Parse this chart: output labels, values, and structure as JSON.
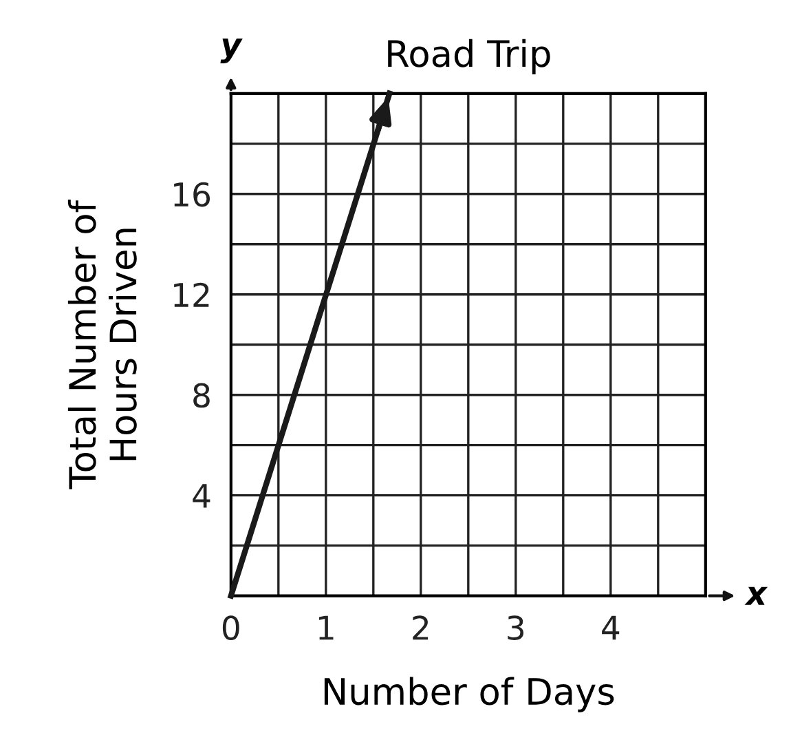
{
  "chart_data": {
    "type": "line",
    "title": "Road Trip",
    "xlabel": "Number of Days",
    "ylabel": "Total Number of\nHours Driven",
    "x": [
      0,
      1.67
    ],
    "series": [
      {
        "color": "#1a1a1a",
        "values": [
          0,
          20
        ]
      }
    ],
    "xlim": [
      0,
      5
    ],
    "ylim": [
      0,
      20
    ],
    "xticks": [
      0,
      {
        "value": 0.5,
        "label": null
      },
      1,
      {
        "value": 1.5,
        "label": null
      },
      2,
      {
        "value": 2.5,
        "label": null
      },
      3,
      {
        "value": 3.5,
        "label": null
      },
      4,
      {
        "value": 4.5,
        "label": null
      },
      {
        "value": 5,
        "label": null
      }
    ],
    "yticks": [
      {
        "value": 0,
        "label": null
      },
      {
        "value": 2,
        "label": null
      },
      4,
      {
        "value": 6,
        "label": null
      },
      8,
      {
        "value": 10,
        "label": null
      },
      12,
      {
        "value": 14,
        "label": null
      },
      16,
      {
        "value": 18,
        "label": null
      },
      {
        "value": 20,
        "label": null
      }
    ],
    "grid": true,
    "marker": "none",
    "line_style": "solid",
    "annotations": [
      "x",
      "y"
    ]
  }
}
